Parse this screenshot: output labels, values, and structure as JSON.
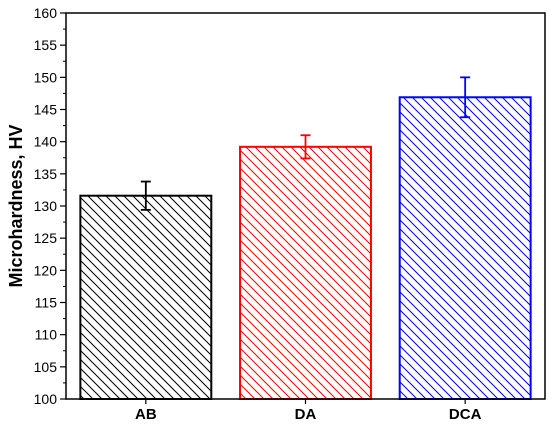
{
  "chart_data": {
    "type": "bar",
    "title": "",
    "xlabel": "",
    "ylabel": "Microhardness, HV",
    "categories": [
      "AB",
      "DA",
      "DCA"
    ],
    "values": [
      131.6,
      139.2,
      146.9
    ],
    "error": [
      2.2,
      1.8,
      3.1
    ],
    "colors": [
      "#000000",
      "#ff0000",
      "#0000ff"
    ],
    "fill_pattern": "diagonal-hatch",
    "ylim": [
      100,
      160
    ],
    "yticks": [
      "100",
      "105",
      "110",
      "115",
      "120",
      "125",
      "130",
      "135",
      "140",
      "145",
      "150",
      "155",
      "160"
    ],
    "grid": false,
    "legend": "none"
  }
}
